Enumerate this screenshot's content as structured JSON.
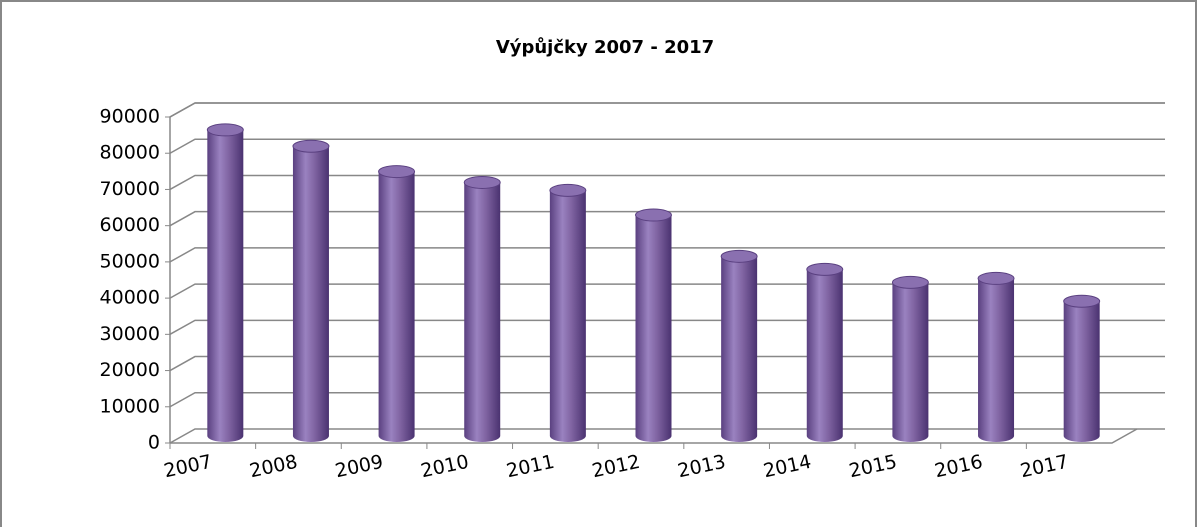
{
  "chart_data": {
    "type": "bar3d",
    "title": "Výpůjčky 2007 - 2017",
    "categories": [
      "2007",
      "2008",
      "2009",
      "2010",
      "2011",
      "2012",
      "2013",
      "2014",
      "2015",
      "2016",
      "2017"
    ],
    "values": [
      84500,
      80000,
      73000,
      70000,
      67800,
      61000,
      49600,
      46000,
      42400,
      43500,
      37200
    ],
    "color": "#8064a2",
    "ylim": [
      0,
      90000
    ],
    "yticks": [
      0,
      10000,
      20000,
      30000,
      40000,
      50000,
      60000,
      70000,
      80000,
      90000
    ],
    "grid": true
  }
}
